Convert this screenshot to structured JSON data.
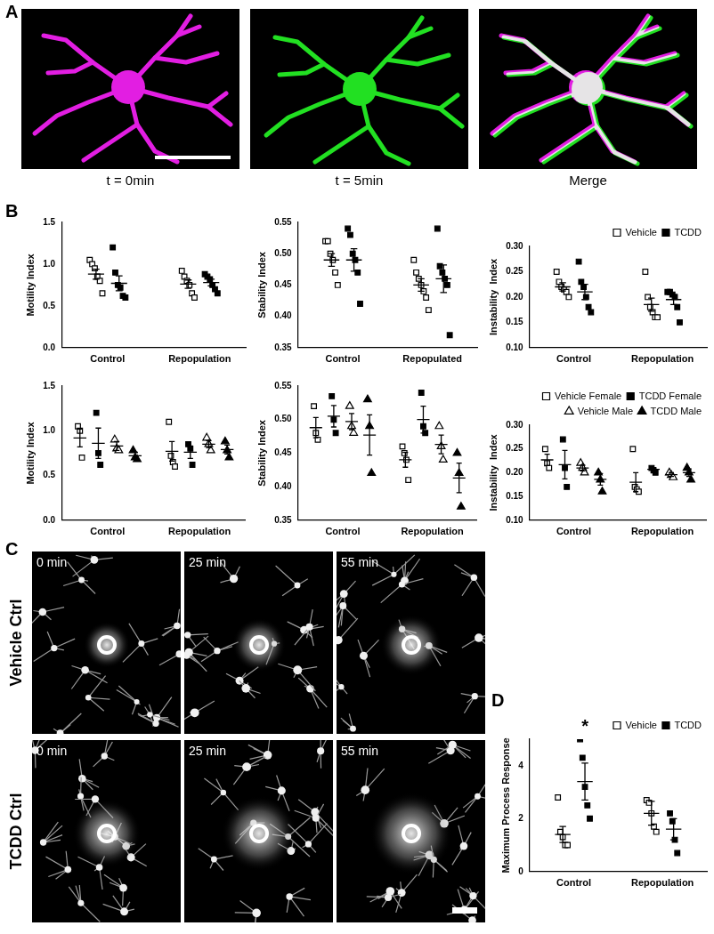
{
  "panel_labels": [
    "A",
    "B",
    "C",
    "D"
  ],
  "images": {
    "A": {
      "captions": [
        "t = 0min",
        "t = 5min",
        "Merge"
      ]
    },
    "C": {
      "times": [
        "0 min",
        "25 min",
        "55 min"
      ],
      "rows": [
        "Vehicle Ctrl",
        "TCDD Ctrl"
      ]
    }
  },
  "chart_data": [
    {
      "type": "scatter",
      "ylabel": "Motility Index",
      "categories": [
        "Control",
        "Repopulation"
      ],
      "ylim": [
        0,
        1.5
      ],
      "yticks": [
        {
          "value": 0,
          "label": "0.0"
        },
        0.5,
        {
          "value": 1,
          "label": "1.0"
        },
        1.5
      ],
      "grid": false,
      "series": [
        {
          "name": "Vehicle",
          "color": "#000000",
          "marker": "open square",
          "values": [
            [
              1.05,
              1.0,
              0.95,
              0.85,
              0.8,
              0.65
            ],
            [
              0.92,
              0.85,
              0.8,
              0.75,
              0.65,
              0.6
            ]
          ],
          "mean": [
            0.88,
            0.76
          ],
          "error": [
            0.06,
            0.05
          ]
        },
        {
          "name": "TCDD",
          "color": "#000000",
          "marker": "filled square",
          "values": [
            [
              1.2,
              0.9,
              0.75,
              0.72,
              0.62,
              0.6
            ],
            [
              0.88,
              0.85,
              0.82,
              0.75,
              0.7,
              0.65
            ]
          ],
          "mean": [
            0.77,
            0.78
          ],
          "error": [
            0.09,
            0.04
          ]
        }
      ]
    },
    {
      "type": "scatter",
      "ylabel": "Stability Index",
      "categories": [
        "Control",
        "Repopulated"
      ],
      "ylim": [
        0.35,
        0.55
      ],
      "yticks": [
        0.35,
        {
          "value": 0.4,
          "label": "0.40"
        },
        0.45,
        {
          "value": 0.5,
          "label": "0.50"
        },
        0.55
      ],
      "grid": false,
      "series": [
        {
          "name": "Vehicle",
          "color": "#000000",
          "marker": "open square",
          "values": [
            [
              0.52,
              0.52,
              0.5,
              0.49,
              0.47,
              0.45
            ],
            [
              0.49,
              0.47,
              0.46,
              0.45,
              0.44,
              0.43,
              0.41
            ]
          ],
          "mean": [
            0.49,
            0.45
          ],
          "error": [
            0.01,
            0.01
          ]
        },
        {
          "name": "TCDD",
          "color": "#000000",
          "marker": "filled square",
          "values": [
            [
              0.54,
              0.53,
              0.5,
              0.49,
              0.47,
              0.42
            ],
            [
              0.54,
              0.48,
              0.47,
              0.46,
              0.45,
              0.37
            ]
          ],
          "mean": [
            0.49,
            0.46
          ],
          "error": [
            0.018,
            0.022
          ]
        }
      ]
    },
    {
      "type": "scatter",
      "ylabel": "Instability  Index",
      "categories": [
        "Control",
        "Repopulation"
      ],
      "ylim": [
        0.1,
        0.3
      ],
      "yticks": [
        {
          "value": 0.1,
          "label": "0.10"
        },
        0.15,
        {
          "value": 0.2,
          "label": "0.20"
        },
        0.25,
        {
          "value": 0.3,
          "label": "0.30"
        }
      ],
      "grid": false,
      "legend": "upper right",
      "series": [
        {
          "name": "Vehicle",
          "color": "#000000",
          "marker": "open square",
          "values": [
            [
              0.25,
              0.23,
              0.22,
              0.215,
              0.21,
              0.2
            ],
            [
              0.25,
              0.2,
              0.18,
              0.17,
              0.16,
              0.16
            ]
          ],
          "mean": [
            0.22,
            0.185
          ],
          "error": [
            0.008,
            0.013
          ]
        },
        {
          "name": "TCDD",
          "color": "#000000",
          "marker": "filled square",
          "values": [
            [
              0.27,
              0.23,
              0.22,
              0.2,
              0.18,
              0.17
            ],
            [
              0.21,
              0.21,
              0.205,
              0.2,
              0.18,
              0.15
            ]
          ],
          "mean": [
            0.21,
            0.195
          ],
          "error": [
            0.015,
            0.01
          ]
        }
      ]
    },
    {
      "type": "scatter",
      "ylabel": "Motility Index",
      "categories": [
        "Control",
        "Repopulation"
      ],
      "ylim": [
        0,
        1.5
      ],
      "yticks": [
        {
          "value": 0,
          "label": "0.0"
        },
        0.5,
        {
          "value": 1,
          "label": "1.0"
        },
        1.5
      ],
      "grid": false,
      "series": [
        {
          "name": "Vehicle Female",
          "color": "#000000",
          "marker": "open square",
          "values": [
            [
              1.05,
              1.0,
              0.7
            ],
            [
              1.1,
              0.72,
              0.65,
              0.6
            ]
          ],
          "mean": [
            0.92,
            0.77
          ],
          "error": [
            0.1,
            0.11
          ]
        },
        {
          "name": "TCDD Female",
          "color": "#000000",
          "marker": "filled square",
          "values": [
            [
              1.2,
              0.75,
              0.62
            ],
            [
              0.85,
              0.8,
              0.62
            ]
          ],
          "mean": [
            0.86,
            0.76
          ],
          "error": [
            0.17,
            0.07
          ]
        },
        {
          "name": "Vehicle Male",
          "color": "#000000",
          "marker": "open triangle",
          "values": [
            [
              0.9,
              0.8,
              0.78
            ],
            [
              0.92,
              0.85,
              0.78
            ]
          ],
          "mean": [
            0.83,
            0.85
          ],
          "error": [
            0.05,
            0.04
          ]
        },
        {
          "name": "TCDD Male",
          "color": "#000000",
          "marker": "filled triangle",
          "values": [
            [
              0.78,
              0.7,
              0.68
            ],
            [
              0.88,
              0.78,
              0.7
            ]
          ],
          "mean": [
            0.72,
            0.79
          ],
          "error": [
            0.04,
            0.05
          ]
        }
      ]
    },
    {
      "type": "scatter",
      "ylabel": "Stability Index",
      "categories": [
        "Control",
        "Repopulation"
      ],
      "ylim": [
        0.35,
        0.55
      ],
      "yticks": [
        0.35,
        {
          "value": 0.4,
          "label": "0.40"
        },
        0.45,
        {
          "value": 0.5,
          "label": "0.50"
        },
        0.55
      ],
      "grid": false,
      "series": [
        {
          "name": "Vehicle Female",
          "color": "#000000",
          "marker": "open square",
          "values": [
            [
              0.52,
              0.48,
              0.47
            ],
            [
              0.46,
              0.45,
              0.44,
              0.41
            ]
          ],
          "mean": [
            0.488,
            0.44
          ],
          "error": [
            0.015,
            0.011
          ]
        },
        {
          "name": "TCDD Female",
          "color": "#000000",
          "marker": "filled square",
          "values": [
            [
              0.535,
              0.5,
              0.48
            ],
            [
              0.54,
              0.49,
              0.48
            ]
          ],
          "mean": [
            0.505,
            0.5
          ],
          "error": [
            0.016,
            0.02
          ]
        },
        {
          "name": "Vehicle Male",
          "color": "#000000",
          "marker": "open triangle",
          "values": [
            [
              0.52,
              0.49,
              0.48
            ],
            [
              0.49,
              0.46,
              0.44
            ]
          ],
          "mean": [
            0.497,
            0.463
          ],
          "error": [
            0.012,
            0.014
          ]
        },
        {
          "name": "TCDD Male",
          "color": "#000000",
          "marker": "filled triangle",
          "values": [
            [
              0.53,
              0.49,
              0.42
            ],
            [
              0.45,
              0.42,
              0.37
            ]
          ],
          "mean": [
            0.477,
            0.413
          ],
          "error": [
            0.03,
            0.022
          ]
        }
      ]
    },
    {
      "type": "scatter",
      "ylabel": "Instability  Index",
      "categories": [
        "Control",
        "Repopulation"
      ],
      "ylim": [
        0.1,
        0.3
      ],
      "yticks": [
        {
          "value": 0.1,
          "label": "0.10"
        },
        0.15,
        {
          "value": 0.2,
          "label": "0.20"
        },
        0.25,
        {
          "value": 0.3,
          "label": "0.30"
        }
      ],
      "grid": false,
      "legend": "upper right",
      "series": [
        {
          "name": "Vehicle Female",
          "color": "#000000",
          "marker": "open square",
          "values": [
            [
              0.25,
              0.22,
              0.21
            ],
            [
              0.25,
              0.17,
              0.165,
              0.16
            ]
          ],
          "mean": [
            0.227,
            0.18
          ],
          "error": [
            0.012,
            0.02
          ]
        },
        {
          "name": "TCDD Female",
          "color": "#000000",
          "marker": "filled square",
          "values": [
            [
              0.27,
              0.21,
              0.17
            ],
            [
              0.21,
              0.205,
              0.2
            ]
          ],
          "mean": [
            0.217,
            0.207
          ],
          "error": [
            0.03,
            0.004
          ]
        },
        {
          "name": "Vehicle Male",
          "color": "#000000",
          "marker": "open triangle",
          "values": [
            [
              0.22,
              0.21,
              0.2
            ],
            [
              0.2,
              0.195,
              0.19
            ]
          ],
          "mean": [
            0.21,
            0.196
          ],
          "error": [
            0.006,
            0.004
          ]
        },
        {
          "name": "TCDD Male",
          "color": "#000000",
          "marker": "filled triangle",
          "values": [
            [
              0.2,
              0.185,
              0.16
            ],
            [
              0.21,
              0.2,
              0.185
            ]
          ],
          "mean": [
            0.186,
            0.2
          ],
          "error": [
            0.012,
            0.008
          ]
        }
      ]
    },
    {
      "type": "scatter",
      "ylabel": "Maximum Process Response",
      "categories": [
        "Control",
        "Repopulation"
      ],
      "ylim": [
        0,
        5
      ],
      "yticks": [
        0,
        2,
        4
      ],
      "grid": false,
      "legend": "upper right",
      "annotations": [
        {
          "text": "*",
          "category": "Control",
          "series": "TCDD"
        }
      ],
      "series": [
        {
          "name": "Vehicle",
          "color": "#000000",
          "marker": "open square",
          "values": [
            [
              2.8,
              1.5,
              1.3,
              1.0,
              1.0
            ],
            [
              2.7,
              2.6,
              2.2,
              1.7,
              1.5
            ]
          ],
          "mean": [
            1.4,
            2.2
          ],
          "error": [
            0.3,
            0.45
          ]
        },
        {
          "name": "TCDD",
          "color": "#000000",
          "marker": "filled square",
          "values": [
            [
              5.0,
              4.3,
              3.2,
              2.5,
              2.0
            ],
            [
              2.2,
              1.9,
              1.2,
              0.7
            ]
          ],
          "mean": [
            3.4,
            1.6
          ],
          "error": [
            0.7,
            0.4
          ]
        }
      ]
    }
  ]
}
